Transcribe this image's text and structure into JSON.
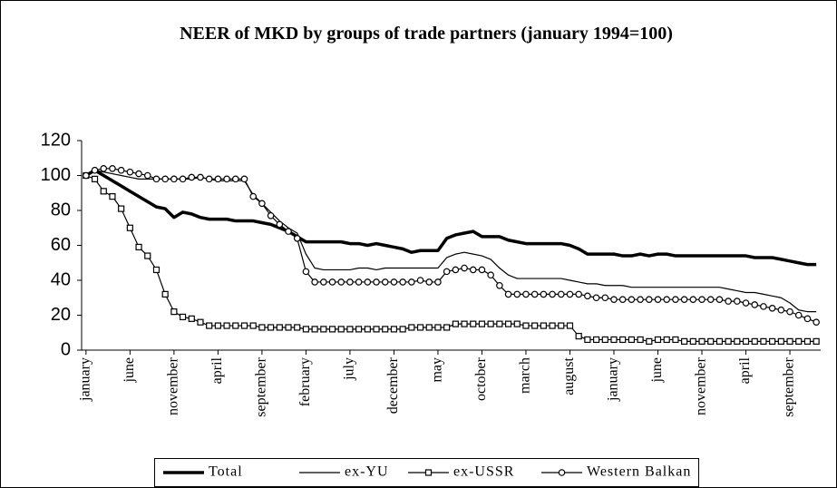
{
  "chart_data": {
    "type": "line",
    "title": "NEER of MKD by groups of trade partners (january 1994=100)",
    "categories": [
      "january",
      null,
      null,
      null,
      null,
      "june",
      null,
      null,
      null,
      null,
      "november",
      null,
      null,
      null,
      null,
      "april",
      null,
      null,
      null,
      null,
      "september",
      null,
      null,
      null,
      null,
      "february",
      null,
      null,
      null,
      null,
      "july",
      null,
      null,
      null,
      null,
      "december",
      null,
      null,
      null,
      null,
      "may",
      null,
      null,
      null,
      null,
      "october",
      null,
      null,
      null,
      null,
      "march",
      null,
      null,
      null,
      null,
      "august",
      null,
      null,
      null,
      null,
      "january",
      null,
      null,
      null,
      null,
      "june",
      null,
      null,
      null,
      null,
      "november",
      null,
      null,
      null,
      null,
      "april",
      null,
      null,
      null,
      null,
      "september",
      null,
      null,
      null
    ],
    "series": [
      {
        "name": "Total",
        "color": "#000000",
        "marker": "none",
        "line_width": 3.5,
        "values": [
          100,
          103,
          100,
          97,
          94,
          91,
          88,
          85,
          82,
          81,
          76,
          79,
          78,
          76,
          75,
          75,
          75,
          74,
          74,
          74,
          73,
          72,
          70,
          68,
          65,
          62,
          62,
          62,
          62,
          62,
          61,
          61,
          60,
          61,
          60,
          59,
          58,
          56,
          57,
          57,
          57,
          64,
          66,
          67,
          68,
          65,
          65,
          65,
          63,
          62,
          61,
          61,
          61,
          61,
          61,
          60,
          58,
          55,
          55,
          55,
          55,
          54,
          54,
          55,
          54,
          55,
          55,
          54,
          54,
          54,
          54,
          54,
          54,
          54,
          54,
          54,
          53,
          53,
          53,
          52,
          51,
          50,
          49,
          49
        ]
      },
      {
        "name": "ex-YU",
        "color": "#000000",
        "marker": "none",
        "line_width": 1.2,
        "values": [
          100,
          103,
          102,
          101,
          100,
          99,
          98,
          98,
          98,
          98,
          98,
          98,
          98,
          99,
          98,
          97,
          97,
          97,
          97,
          89,
          84,
          79,
          74,
          70,
          67,
          55,
          47,
          46,
          46,
          46,
          46,
          47,
          47,
          46,
          47,
          47,
          47,
          47,
          47,
          47,
          47,
          53,
          55,
          56,
          55,
          54,
          52,
          47,
          43,
          41,
          41,
          41,
          41,
          41,
          41,
          40,
          39,
          38,
          38,
          37,
          37,
          37,
          36,
          36,
          36,
          36,
          36,
          36,
          36,
          36,
          36,
          36,
          36,
          35,
          34,
          33,
          33,
          32,
          31,
          30,
          27,
          23,
          22,
          22
        ]
      },
      {
        "name": "ex-USSR",
        "color": "#000000",
        "marker": "square",
        "line_width": 1.2,
        "values": [
          100,
          98,
          91,
          88,
          81,
          70,
          59,
          54,
          46,
          32,
          22,
          19,
          18,
          16,
          14,
          14,
          14,
          14,
          14,
          14,
          13,
          13,
          13,
          13,
          13,
          12,
          12,
          12,
          12,
          12,
          12,
          12,
          12,
          12,
          12,
          12,
          12,
          13,
          13,
          13,
          13,
          13,
          15,
          15,
          15,
          15,
          15,
          15,
          15,
          15,
          14,
          14,
          14,
          14,
          14,
          14,
          8,
          6,
          6,
          6,
          6,
          6,
          6,
          6,
          5,
          6,
          6,
          6,
          5,
          5,
          5,
          5,
          5,
          5,
          5,
          5,
          5,
          5,
          5,
          5,
          5,
          5,
          5,
          5
        ]
      },
      {
        "name": "Western Balkan",
        "color": "#000000",
        "marker": "circle",
        "line_width": 1.2,
        "values": [
          100,
          103,
          104,
          104,
          103,
          102,
          101,
          100,
          98,
          98,
          98,
          98,
          99,
          99,
          98,
          98,
          98,
          98,
          98,
          88,
          84,
          77,
          72,
          68,
          64,
          45,
          39,
          39,
          39,
          39,
          39,
          39,
          39,
          39,
          39,
          39,
          39,
          39,
          40,
          39,
          39,
          45,
          46,
          47,
          46,
          46,
          43,
          37,
          32,
          32,
          32,
          32,
          32,
          32,
          32,
          32,
          32,
          31,
          30,
          30,
          29,
          29,
          29,
          29,
          29,
          29,
          29,
          29,
          29,
          29,
          29,
          29,
          29,
          28,
          28,
          27,
          26,
          25,
          24,
          23,
          22,
          20,
          18,
          16
        ]
      }
    ],
    "ylim": [
      0,
      120
    ],
    "yticks": [
      0,
      20,
      40,
      60,
      80,
      100,
      120
    ],
    "grid": false,
    "legend": "bottom"
  }
}
